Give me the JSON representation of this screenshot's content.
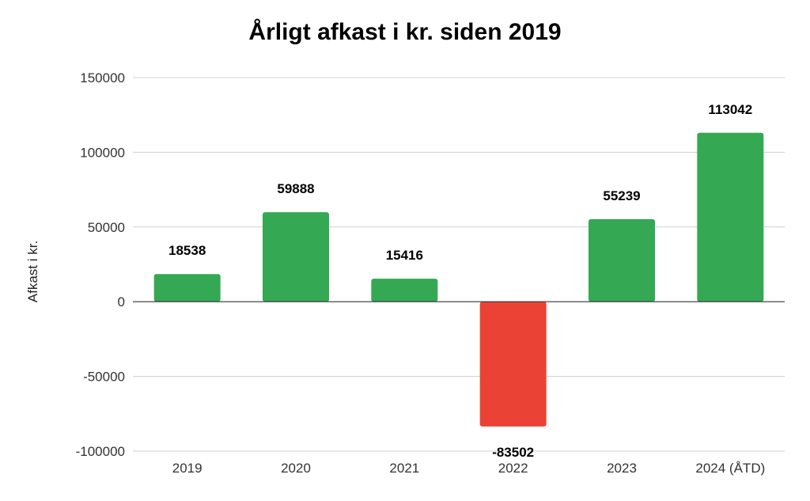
{
  "chart_data": {
    "type": "bar",
    "title": "Årligt afkast i kr. siden 2019",
    "xlabel": "",
    "ylabel": "Afkast i kr.",
    "categories": [
      "2019",
      "2020",
      "2021",
      "2022",
      "2023",
      "2024 (ÅTD)"
    ],
    "values": [
      18538,
      59888,
      15416,
      -83502,
      55239,
      113042
    ],
    "ylim": [
      -100000,
      150000
    ],
    "yticks": [
      "150000",
      "100000",
      "50000",
      "0",
      "-50000",
      "-100000"
    ],
    "grid": true,
    "legend": "none",
    "colors": {
      "positive": "#34a853",
      "negative": "#ea4335"
    }
  }
}
